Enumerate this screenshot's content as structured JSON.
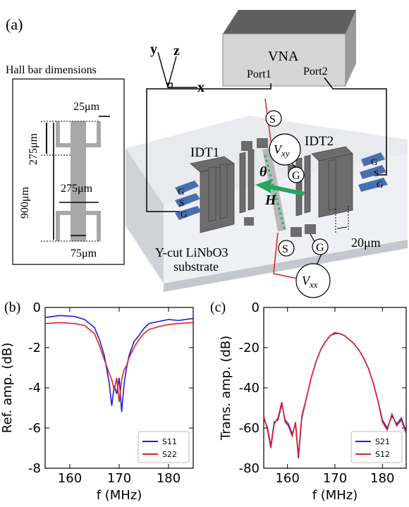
{
  "figure": {
    "label_a": "(a)",
    "label_b": "(b)",
    "label_c": "(c)"
  },
  "inset": {
    "title": "Hall bar dimensions",
    "dim_25": "25μm",
    "dim_275_v": "275μm",
    "dim_275_h": "275μm",
    "dim_900": "900μm",
    "dim_75": "75μm"
  },
  "schematic": {
    "vna": "VNA",
    "port1": "Port1",
    "port2": "Port2",
    "axis_y": "y",
    "axis_z": "z",
    "axis_x": "x",
    "idt1": "IDT1",
    "idt2": "IDT2",
    "s": "S",
    "g": "G",
    "vxy_main": "V",
    "vxy_sub": "xy",
    "vxx_main": "V",
    "vxx_sub": "xx",
    "theta": "θ",
    "h": "H",
    "pitch": "20μm",
    "substrate_1": "Y-cut LiNbO3",
    "substrate_2": "substrate"
  },
  "chart_data": [
    {
      "type": "line",
      "panel": "(b)",
      "xlabel": "f (MHz)",
      "ylabel": "Ref. amp. (dB)",
      "xlim": [
        155,
        185
      ],
      "ylim": [
        -8,
        0
      ],
      "xticks": [
        160,
        170,
        180
      ],
      "yticks": [
        0,
        -2,
        -4,
        -6,
        -8
      ],
      "legend_position": "bottom-right",
      "colors": {
        "S11": "#1f1fd6",
        "S22": "#e02020"
      },
      "series": [
        {
          "name": "S11",
          "x": [
            155,
            158,
            161,
            163,
            165,
            166,
            167,
            168,
            168.5,
            169,
            169.5,
            170,
            170.5,
            171,
            171.5,
            172,
            173,
            174,
            175,
            176,
            178,
            180,
            182,
            185
          ],
          "y": [
            -0.5,
            -0.4,
            -0.45,
            -0.6,
            -1.0,
            -1.6,
            -2.4,
            -3.8,
            -4.9,
            -3.9,
            -4.3,
            -3.5,
            -5.2,
            -3.8,
            -3.0,
            -2.4,
            -1.7,
            -1.4,
            -1.05,
            -0.8,
            -0.7,
            -0.6,
            -0.65,
            -0.55
          ]
        },
        {
          "name": "S22",
          "x": [
            155,
            158,
            161,
            163,
            165,
            166,
            167,
            168,
            168.5,
            169,
            169.5,
            170,
            170.5,
            171,
            171.5,
            172,
            173,
            174,
            175,
            176,
            178,
            180,
            182,
            185
          ],
          "y": [
            -0.8,
            -0.75,
            -0.8,
            -0.9,
            -1.3,
            -1.9,
            -2.6,
            -3.3,
            -3.6,
            -4.1,
            -3.5,
            -4.7,
            -3.6,
            -3.1,
            -2.9,
            -2.5,
            -2.0,
            -1.6,
            -1.3,
            -1.1,
            -0.95,
            -0.85,
            -0.8,
            -0.75
          ]
        }
      ]
    },
    {
      "type": "line",
      "panel": "(c)",
      "xlabel": "f (MHz)",
      "ylabel": "Trans. amp. (dB)",
      "xlim": [
        155,
        185
      ],
      "ylim": [
        -80,
        0
      ],
      "xticks": [
        160,
        170,
        180
      ],
      "yticks": [
        0,
        -20,
        -40,
        -60,
        -80
      ],
      "legend_position": "bottom-right",
      "colors": {
        "S21": "#1f1fd6",
        "S12": "#e02020"
      },
      "series": [
        {
          "name": "S21",
          "x": [
            155,
            155.8,
            156.5,
            157.2,
            158,
            158.8,
            159.5,
            160.2,
            161,
            161.7,
            162.3,
            163,
            164,
            165,
            166,
            167,
            168,
            169,
            170,
            171,
            172,
            173,
            174,
            175,
            176,
            177,
            178,
            179,
            180,
            181,
            182,
            183,
            184,
            185
          ],
          "y": [
            -55,
            -60,
            -69,
            -57,
            -56,
            -48,
            -56,
            -58,
            -63,
            -58,
            -75,
            -55,
            -45,
            -35,
            -27,
            -21,
            -17,
            -14,
            -13,
            -13,
            -14,
            -16,
            -18,
            -21,
            -25,
            -30,
            -37,
            -46,
            -56,
            -60,
            -54,
            -58,
            -55,
            -62
          ]
        },
        {
          "name": "S12",
          "x": [
            155,
            155.8,
            156.5,
            157.2,
            158,
            158.8,
            159.5,
            160.2,
            161,
            161.7,
            162.3,
            163,
            164,
            165,
            166,
            167,
            168,
            169,
            170,
            171,
            172,
            173,
            174,
            175,
            176,
            177,
            178,
            179,
            180,
            181,
            182,
            183,
            184,
            185
          ],
          "y": [
            -54,
            -61,
            -70,
            -58,
            -55,
            -47,
            -57,
            -59,
            -64,
            -57,
            -74,
            -54,
            -45,
            -35,
            -27,
            -21,
            -17,
            -14,
            -12.5,
            -13,
            -14,
            -16,
            -18,
            -21,
            -25,
            -30,
            -37,
            -46,
            -57,
            -61,
            -53,
            -59,
            -56,
            -63
          ]
        }
      ]
    }
  ]
}
